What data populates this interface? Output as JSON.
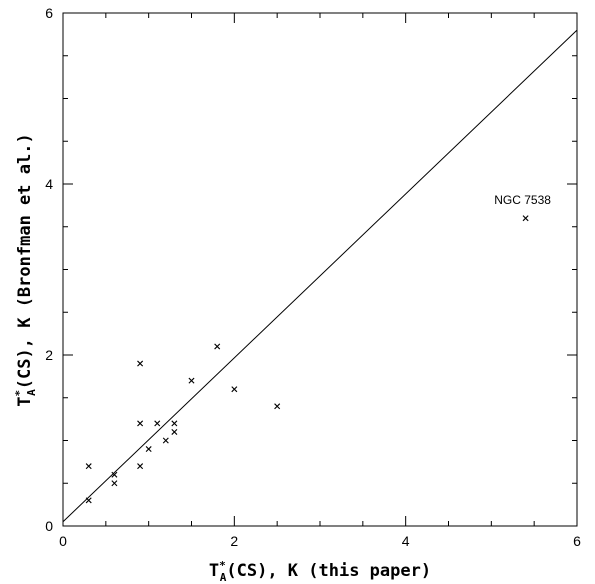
{
  "chart_data": {
    "type": "scatter",
    "xlabel": {
      "main": "T",
      "sup": "*",
      "sub": "A",
      "rest": "(CS), K (this paper)"
    },
    "ylabel": {
      "main": "T",
      "sup": "*",
      "sub": "A",
      "rest": "(CS), K (Bronfman et al.)"
    },
    "xlim": [
      0,
      6
    ],
    "ylim": [
      0,
      6
    ],
    "x_ticks": [
      "0",
      "2",
      "4",
      "6"
    ],
    "y_ticks": [
      "0",
      "2",
      "4",
      "6"
    ],
    "grid": false,
    "marker": "x",
    "reference_line": {
      "label": "",
      "x": [
        0,
        6
      ],
      "y": [
        0.05,
        5.8
      ]
    },
    "points": [
      {
        "x": 0.3,
        "y": 0.3
      },
      {
        "x": 0.3,
        "y": 0.7
      },
      {
        "x": 0.6,
        "y": 0.5
      },
      {
        "x": 0.6,
        "y": 0.6
      },
      {
        "x": 0.9,
        "y": 0.7
      },
      {
        "x": 0.9,
        "y": 1.2
      },
      {
        "x": 0.9,
        "y": 1.9
      },
      {
        "x": 1.0,
        "y": 0.9
      },
      {
        "x": 1.1,
        "y": 1.2
      },
      {
        "x": 1.2,
        "y": 1.0
      },
      {
        "x": 1.3,
        "y": 1.1
      },
      {
        "x": 1.3,
        "y": 1.2
      },
      {
        "x": 1.5,
        "y": 1.7
      },
      {
        "x": 1.8,
        "y": 2.1
      },
      {
        "x": 2.0,
        "y": 1.6
      },
      {
        "x": 2.5,
        "y": 1.4
      },
      {
        "x": 5.4,
        "y": 3.6
      }
    ],
    "annotations": [
      {
        "text": "NGC 7538",
        "x": 5.4,
        "y": 3.6
      }
    ]
  }
}
